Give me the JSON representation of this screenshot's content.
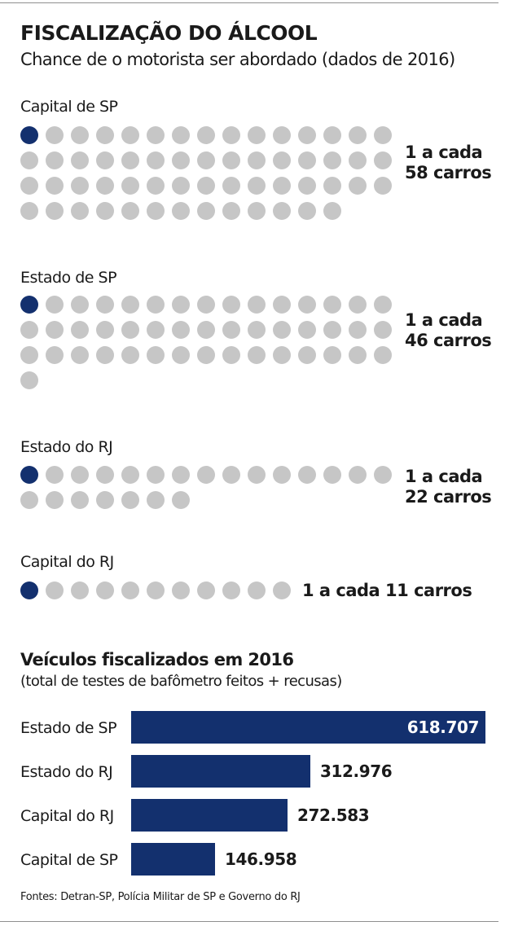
{
  "header": {
    "title": "FISCALIZAÇÃO DO ÁLCOOL",
    "subtitle": "Chance de o motorista ser abordado (dados de 2016)"
  },
  "colors": {
    "highlight_dot": "#13306e",
    "other_dot": "#c6c6c6",
    "bar": "#13306e"
  },
  "chart_data": [
    {
      "type": "pictogram",
      "groups": [
        {
          "label": "Capital de SP",
          "rate_line1": "1 a cada",
          "rate_line2": "58 carros",
          "total": 58,
          "highlighted": 1
        },
        {
          "label": "Estado de SP",
          "rate_line1": "1 a cada",
          "rate_line2": "46 carros",
          "total": 46,
          "highlighted": 1
        },
        {
          "label": "Estado do RJ",
          "rate_line1": "1 a cada",
          "rate_line2": "22 carros",
          "total": 22,
          "highlighted": 1
        },
        {
          "label": "Capital do RJ",
          "rate_line1": "1 a cada 11 carros",
          "rate_line2": "",
          "total": 11,
          "highlighted": 1
        }
      ]
    },
    {
      "type": "bar",
      "orientation": "horizontal",
      "title": "Veículos fiscalizados em 2016",
      "subtitle": "(total de testes de bafômetro feitos + recusas)",
      "categories": [
        "Estado de SP",
        "Estado do RJ",
        "Capital do RJ",
        "Capital de SP"
      ],
      "values": [
        618707,
        312976,
        272583,
        146958
      ],
      "value_labels": [
        "618.707",
        "312.976",
        "272.583",
        "146.958"
      ]
    }
  ],
  "source": "Fontes: Detran-SP, Polícia Militar de SP e Governo do RJ"
}
